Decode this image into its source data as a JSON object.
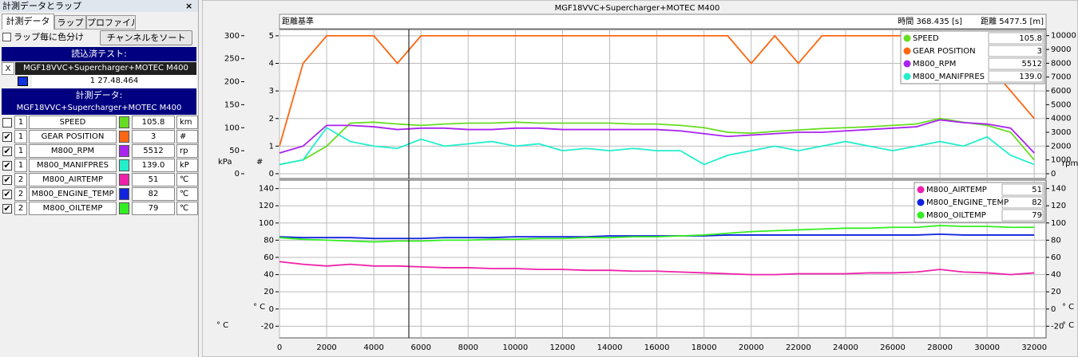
{
  "panel": {
    "title": "計測データとラップ",
    "close": "×",
    "tabs": [
      "計測データ",
      "ラップ",
      "プロファイル"
    ],
    "lap_color_checkbox": "ラップ毎に色分け",
    "sort_button": "チャンネルをソート",
    "loaded_header": "読込済テスト:",
    "loaded_remove": "X",
    "loaded_test": "MGF18VVC+Supercharger+MOTEC M400",
    "lap_time": "1 27.48.464",
    "data_header": "計測データ:",
    "data_test": "MGF18VVC+Supercharger+MOTEC M400",
    "channels": [
      {
        "checked": false,
        "lap": "1",
        "name": "SPEED",
        "color": "#66dd22",
        "value": "105.8",
        "unit": "km"
      },
      {
        "checked": true,
        "lap": "1",
        "name": "GEAR POSITION",
        "color": "#ff6611",
        "value": "3",
        "unit": "#"
      },
      {
        "checked": true,
        "lap": "1",
        "name": "M800_RPM",
        "color": "#aa22ee",
        "value": "5512",
        "unit": "rp"
      },
      {
        "checked": true,
        "lap": "1",
        "name": "M800_MANIFPRES",
        "color": "#22eecc",
        "value": "139.0",
        "unit": "kP"
      },
      {
        "checked": true,
        "lap": "2",
        "name": "M800_AIRTEMP",
        "color": "#ee22aa",
        "value": "51",
        "unit": "℃"
      },
      {
        "checked": true,
        "lap": "2",
        "name": "M800_ENGINE_TEMP",
        "color": "#1122dd",
        "value": "82",
        "unit": "℃"
      },
      {
        "checked": true,
        "lap": "2",
        "name": "M800_OILTEMP",
        "color": "#33ee22",
        "value": "79",
        "unit": "℃"
      }
    ]
  },
  "chart_header": {
    "title": "MGF18VVC+Supercharger+MOTEC M400",
    "basis": "距離基準",
    "time": "時間  368.435 [s]",
    "distance": "距離  5477.5 [m]"
  },
  "chart_data": [
    {
      "type": "line",
      "x": [
        0,
        1000,
        2000,
        3000,
        4000,
        5000,
        6000,
        7000,
        8000,
        9000,
        10000,
        11000,
        12000,
        13000,
        14000,
        15000,
        16000,
        17000,
        18000,
        19000,
        20000,
        21000,
        22000,
        23000,
        24000,
        25000,
        26000,
        27000,
        28000,
        29000,
        30000,
        31000,
        32000
      ],
      "xlim": [
        0,
        32500
      ],
      "xticks": [
        0,
        2000,
        4000,
        6000,
        8000,
        10000,
        12000,
        14000,
        16000,
        18000,
        20000,
        22000,
        24000,
        26000,
        28000,
        30000,
        32000
      ],
      "axes": [
        {
          "side": "left",
          "label": "kPa",
          "lim": [
            0,
            310
          ],
          "ticks": [
            0,
            50,
            100,
            150,
            200,
            250,
            300
          ]
        },
        {
          "side": "left",
          "label": "#",
          "lim": [
            0,
            5.17
          ],
          "ticks": [
            0,
            1,
            2,
            3,
            4,
            5
          ],
          "grid": true
        },
        {
          "side": "right",
          "label": "rpm",
          "lim": [
            0,
            10330
          ],
          "ticks": [
            0,
            1000,
            2000,
            3000,
            4000,
            5000,
            6000,
            7000,
            8000,
            9000,
            10000
          ]
        }
      ],
      "series": [
        {
          "name": "SPEED",
          "color": "#66dd22",
          "axis": 0,
          "legend_value": "105.8",
          "values": [
            20,
            30,
            60,
            110,
            112,
            108,
            105,
            108,
            110,
            110,
            112,
            110,
            110,
            110,
            110,
            108,
            108,
            105,
            100,
            90,
            88,
            92,
            95,
            98,
            100,
            102,
            105,
            108,
            120,
            112,
            105,
            90,
            30
          ]
        },
        {
          "name": "GEAR POSITION",
          "color": "#ff6611",
          "axis": 1,
          "legend_value": "3",
          "values": [
            1,
            4,
            5,
            5,
            5,
            4,
            5,
            5,
            5,
            5,
            5,
            5,
            5,
            5,
            5,
            5,
            5,
            5,
            5,
            5,
            4,
            5,
            4,
            5,
            5,
            5,
            5,
            5,
            5,
            5,
            4,
            3,
            2
          ]
        },
        {
          "name": "M800_RPM",
          "color": "#aa22ee",
          "axis": 2,
          "legend_value": "5512",
          "values": [
            1500,
            2000,
            3500,
            3500,
            3400,
            3200,
            3300,
            3300,
            3200,
            3200,
            3300,
            3300,
            3200,
            3200,
            3200,
            3200,
            3200,
            3100,
            2900,
            2700,
            2800,
            2900,
            3000,
            3000,
            3100,
            3200,
            3300,
            3400,
            3900,
            3700,
            3600,
            3300,
            1500
          ]
        },
        {
          "name": "M800_MANIFPRES",
          "color": "#22eecc",
          "axis": 0,
          "legend_value": "139.0",
          "values": [
            20,
            30,
            100,
            70,
            60,
            55,
            75,
            60,
            65,
            70,
            60,
            65,
            50,
            55,
            50,
            55,
            50,
            50,
            20,
            40,
            50,
            60,
            50,
            60,
            70,
            60,
            50,
            60,
            70,
            60,
            80,
            40,
            20
          ]
        }
      ]
    },
    {
      "type": "line",
      "x": [
        0,
        1000,
        2000,
        3000,
        4000,
        5000,
        6000,
        7000,
        8000,
        9000,
        10000,
        11000,
        12000,
        13000,
        14000,
        15000,
        16000,
        17000,
        18000,
        19000,
        20000,
        21000,
        22000,
        23000,
        24000,
        25000,
        26000,
        27000,
        28000,
        29000,
        30000,
        31000,
        32000
      ],
      "xlim": [
        0,
        32500
      ],
      "xticks": [
        0,
        2000,
        4000,
        6000,
        8000,
        10000,
        12000,
        14000,
        16000,
        18000,
        20000,
        22000,
        24000,
        26000,
        28000,
        30000,
        32000
      ],
      "axes": [
        {
          "side": "left",
          "label": "° C",
          "lim": [
            -28,
            148
          ],
          "ticks": [
            -20,
            0,
            20,
            40,
            60,
            80,
            100,
            120,
            140
          ],
          "grid": true
        },
        {
          "side": "right",
          "label": "° C",
          "lim": [
            -28,
            148
          ],
          "ticks": [
            -20,
            0,
            20,
            40,
            60,
            80,
            100,
            120,
            140
          ]
        }
      ],
      "series": [
        {
          "name": "M800_AIRTEMP",
          "color": "#ee22aa",
          "axis": 0,
          "legend_value": "51",
          "values": [
            55,
            52,
            50,
            52,
            50,
            50,
            49,
            48,
            48,
            47,
            47,
            46,
            46,
            45,
            45,
            44,
            44,
            43,
            42,
            41,
            40,
            40,
            41,
            41,
            41,
            42,
            42,
            43,
            46,
            43,
            42,
            40,
            42
          ]
        },
        {
          "name": "M800_ENGINE_TEMP",
          "color": "#1122dd",
          "axis": 0,
          "legend_value": "82",
          "values": [
            84,
            83,
            83,
            83,
            82,
            82,
            82,
            83,
            83,
            83,
            84,
            84,
            84,
            84,
            85,
            85,
            85,
            85,
            85,
            86,
            86,
            86,
            86,
            86,
            86,
            86,
            86,
            86,
            87,
            86,
            86,
            86,
            86
          ]
        },
        {
          "name": "M800_OILTEMP",
          "color": "#33ee22",
          "axis": 0,
          "legend_value": "79",
          "values": [
            83,
            81,
            80,
            79,
            78,
            79,
            79,
            80,
            80,
            81,
            81,
            82,
            82,
            83,
            83,
            84,
            84,
            85,
            86,
            88,
            90,
            91,
            92,
            93,
            94,
            94,
            95,
            95,
            97,
            96,
            96,
            95,
            95
          ]
        }
      ]
    }
  ]
}
